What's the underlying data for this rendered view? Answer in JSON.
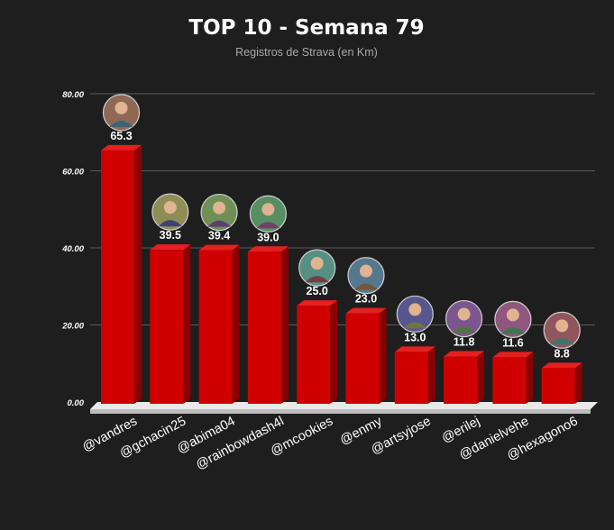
{
  "chart_data": {
    "type": "bar",
    "title": "TOP 10 - Semana 79",
    "subtitle": "Registros de Strava (en Km)",
    "xlabel": "",
    "ylabel": "",
    "ylim": [
      0,
      80
    ],
    "yticks": [
      "0.00",
      "20.00",
      "40.00",
      "60.00",
      "80.00"
    ],
    "grid": true,
    "legend": "none",
    "categories": [
      "@vandres",
      "@gchacin25",
      "@abima04",
      "@rainbowdash4l",
      "@mcookies",
      "@enmy",
      "@artsyjose",
      "@erilej",
      "@danielvehe",
      "@hexagono6"
    ],
    "values": [
      65.3,
      39.5,
      39.4,
      39.0,
      25.0,
      23.0,
      13.0,
      11.8,
      11.6,
      8.8
    ],
    "value_labels": [
      "65.3",
      "39.5",
      "39.4",
      "39.0",
      "25.0",
      "23.0",
      "13.0",
      "11.8",
      "11.6",
      "8.8"
    ],
    "avatars": [
      "avatar-icon",
      "avatar-icon",
      "avatar-icon",
      "avatar-icon",
      "avatar-icon",
      "avatar-icon",
      "avatar-icon",
      "avatar-icon",
      "avatar-icon",
      "avatar-icon"
    ]
  },
  "colors": {
    "background": "#1e1e1e",
    "bar_front": "#d10000",
    "bar_side": "#8a0000",
    "bar_top": "#e52020",
    "grid": "#5a5a5a",
    "floor": "#e9e9e9",
    "text": "#ffffff",
    "subtitle": "#a9a9a9"
  }
}
